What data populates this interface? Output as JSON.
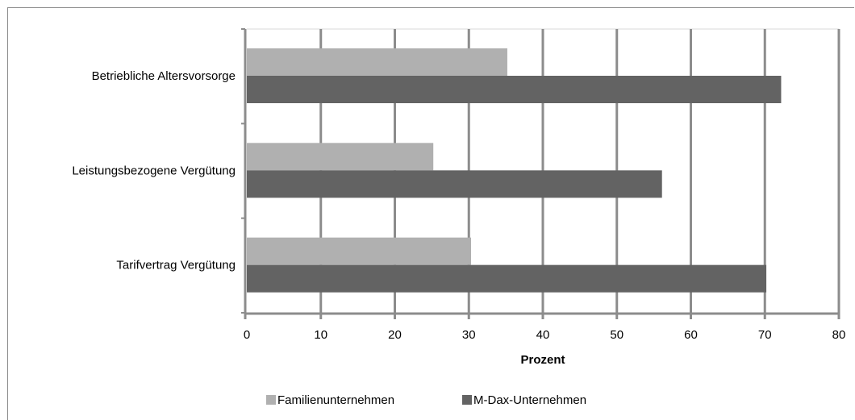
{
  "chart_data": {
    "type": "bar",
    "orientation": "horizontal",
    "title": "",
    "xlabel": "Prozent",
    "ylabel": "",
    "xlim": [
      0,
      80
    ],
    "x_ticks": [
      "0",
      "10",
      "20",
      "30",
      "40",
      "50",
      "60",
      "70",
      "80"
    ],
    "categories": [
      "Betriebliche Altersvorsorge",
      "Leistungsbezogene Vergütung",
      "Tarifvertrag Vergütung"
    ],
    "series": [
      {
        "name": "Familienunternehmen",
        "values": [
          35.2,
          25.2,
          30.3
        ],
        "color": "#b0b0b0"
      },
      {
        "name": "M-Dax-Unternehmen",
        "values": [
          72.2,
          56.1,
          70.2
        ],
        "color": "#636363"
      }
    ],
    "grid": true,
    "legend_position": "bottom"
  }
}
